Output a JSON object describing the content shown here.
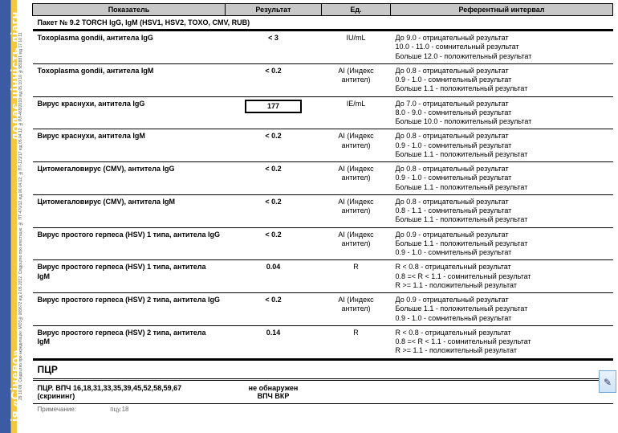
{
  "sidebar": {
    "top_text": "додає цінність діагн",
    "bottom_text": "ія «Сінево»",
    "fineprint": "29 10 09. Свідоцтво про акредитацію: МОЗ№069672 від 2.05.2012. Свідоцтво про атестацію: № ПТ-470/12 від 06.04.12; №ПТ-121/17 від 05.04.12; №РЛ-469/2010 від 05.10.10 №981881 від 17 10 11"
  },
  "headers": {
    "col1": "Показатель",
    "col2": "Результат",
    "col3": "Ед.",
    "col4": "Референтный интервал"
  },
  "package_title": "Пакет № 9.2 TORCH IgG, IgM (HSV1, HSV2, TOXO, CMV, RUB)",
  "rows": [
    {
      "name": "Toxoplasma gondii, антитела IgG",
      "result": "< 3",
      "unit": "IU/mL",
      "ref": "До 9.0 - отрицательный результат\n10.0 - 11.0 - сомнительный результат\nБольше 12.0 - положительный результат",
      "boxed": false
    },
    {
      "name": "Toxoplasma gondii, антитела IgM",
      "result": "< 0.2",
      "unit": "АІ (Индекс антител)",
      "ref": "До 0.8 - отрицательный результат\n0.9 - 1.0 - сомнительный результат\nБольше 1.1 - положительный результат",
      "boxed": false
    },
    {
      "name": "Вирус краснухи, антитела IgG",
      "result": "177",
      "unit": "IE/mL",
      "ref": "До 7.0 - отрицательный результат\n8.0 - 9.0 - сомнительный результат\nБольше 10.0 - положительный результат",
      "boxed": true
    },
    {
      "name": "Вирус краснухи, антитела IgM",
      "result": "< 0.2",
      "unit": "АІ (Индекс антител)",
      "ref": "До 0.8 - отрицательный результат\n0.9 - 1.0 - сомнительный результат\nБольше 1.1 - положительный результат",
      "boxed": false
    },
    {
      "name": "Цитомегаловирус (CMV), антитела IgG",
      "result": "< 0.2",
      "unit": "АІ (Индекс антител)",
      "ref": "До 0.8 - отрицательный результат\n0.9 - 1.0 - сомнительный результат\nБольше 1.1 - положительный результат",
      "boxed": false
    },
    {
      "name": "Цитомегаловирус (CMV), антитела IgM",
      "result": "< 0.2",
      "unit": "АІ (Индекс антител)",
      "ref": "До 0.8 - отрицательный результат\n0.8 - 1.1 - сомнительный результат\nБольше 1.1 - положительный результат",
      "boxed": false
    },
    {
      "name": "Вирус простого герпеса (HSV) 1 типа, антитела IgG",
      "result": "< 0.2",
      "unit": "АІ (Индекс антител)",
      "ref": "До 0.9 - отрицательный результат\nБольше 1.1 - положительный результат\n0.9 - 1.0 - сомнительный результат",
      "boxed": false
    },
    {
      "name": "Вирус простого герпеса (HSV) 1 типа, антитела IgM",
      "result": "0.04",
      "unit": "R",
      "ref": "R < 0.8 - отрицательный результат\n0.8 =< R < 1.1 - сомнительный результат\nR >= 1.1 - положительный результат",
      "boxed": false
    },
    {
      "name": "Вирус простого герпеса (HSV) 2 типа, антитела IgG",
      "result": "< 0.2",
      "unit": "АІ (Индекс антител)",
      "ref": "До 0.9 - отрицательный результат\nБольше 1.1 - положительный результат\n0.9 - 1.0 - сомнительный результат",
      "boxed": false
    },
    {
      "name": "Вирус простого герпеса (HSV) 2 типа, антитела IgM",
      "result": "0.14",
      "unit": "R",
      "ref": "R < 0.8 - отрицательный результат\n0.8 =< R < 1.1 - сомнительный результат\nR >= 1.1 - положительный результат",
      "boxed": false
    }
  ],
  "pcr": {
    "section_title": "ПЦР",
    "name": "ПЦР. ВПЧ 16,18,31,33,35,39,45,52,58,59,67 (скрининг)",
    "result": "не обнаружен\nВПЧ ВКР"
  },
  "note_label": "Примечание:",
  "note_value": "пцу.18"
}
